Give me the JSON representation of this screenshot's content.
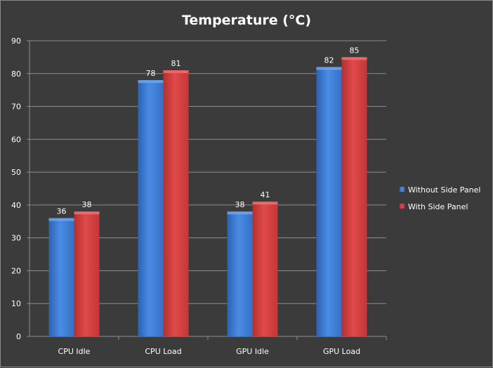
{
  "chart_data": {
    "type": "bar",
    "title": "Temperature (°C)",
    "categories": [
      "CPU Idle",
      "CPU Load",
      "GPU Idle",
      "GPU Load"
    ],
    "series": [
      {
        "name": "Without Side Panel",
        "values": [
          36,
          78,
          38,
          82
        ],
        "color": "#3f7fd6"
      },
      {
        "name": "With Side Panel",
        "values": [
          38,
          81,
          41,
          85
        ],
        "color": "#d64040"
      }
    ],
    "ylim": [
      0,
      90
    ],
    "yticks": [
      0,
      10,
      20,
      30,
      40,
      50,
      60,
      70,
      80,
      90
    ],
    "grid": true,
    "legend_position": "right",
    "xlabel": "",
    "ylabel": ""
  }
}
